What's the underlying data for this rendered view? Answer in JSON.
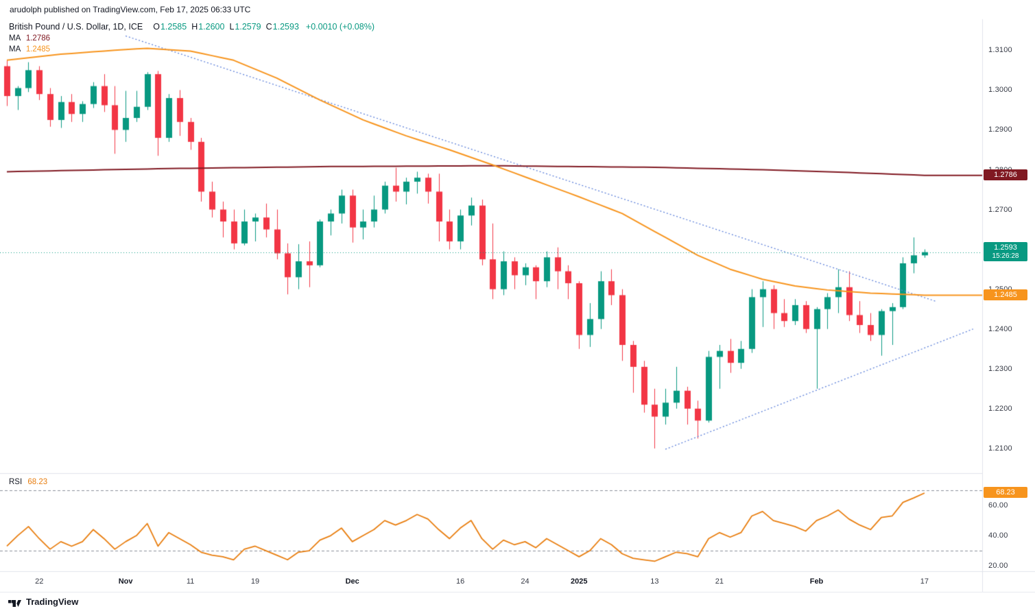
{
  "top_bar": {
    "attribution": "arudolph published on TradingView.com, Feb 17, 2025 06:33 UTC"
  },
  "header": {
    "symbol": "British Pound / U.S. Dollar, 1D, ICE",
    "ohlc": [
      {
        "label": "O",
        "value": "1.2585"
      },
      {
        "label": "H",
        "value": "1.2600"
      },
      {
        "label": "L",
        "value": "1.2579"
      },
      {
        "label": "C",
        "value": "1.2593"
      }
    ],
    "change": "+0.0010 (+0.08%)",
    "ma_rows": [
      {
        "label": "MA",
        "value": "1.2786",
        "color": "#801922"
      },
      {
        "label": "MA",
        "value": "1.2485",
        "color": "#f7941d"
      }
    ]
  },
  "rsi_legend": {
    "label": "RSI",
    "value": "68.23",
    "color": "#e87d0e"
  },
  "price_axis": {
    "labels": [
      {
        "text": "1.3100",
        "value": 1.31
      },
      {
        "text": "1.3000",
        "value": 1.3
      },
      {
        "text": "1.2900",
        "value": 1.29
      },
      {
        "text": "1.2800",
        "value": 1.28
      },
      {
        "text": "1.2700",
        "value": 1.27
      },
      {
        "text": "1.2500",
        "value": 1.25
      },
      {
        "text": "1.2400",
        "value": 1.24
      },
      {
        "text": "1.2300",
        "value": 1.23
      },
      {
        "text": "1.2200",
        "value": 1.22
      },
      {
        "text": "1.2100",
        "value": 1.21
      }
    ],
    "badges": [
      {
        "name": "ma-200-price-badge",
        "text": "1.2786",
        "value": 1.2786,
        "bg": "#801922"
      },
      {
        "name": "last-price-badge",
        "text": "1.2593",
        "value": 1.2593,
        "bg": "#089981",
        "countdown": "15:26:28"
      },
      {
        "name": "ma-50-price-badge",
        "text": "1.2485",
        "value": 1.2485,
        "bg": "#f7941d"
      }
    ]
  },
  "rsi_axis": {
    "labels": [
      {
        "text": "60.00",
        "value": 60
      },
      {
        "text": "40.00",
        "value": 40
      },
      {
        "text": "20.00",
        "value": 20
      }
    ],
    "badge": {
      "name": "rsi-value-badge",
      "text": "68.23",
      "value": 68.23,
      "bg": "#f7941d"
    }
  },
  "time_axis": {
    "ticks": [
      {
        "i": 3,
        "text": "22"
      },
      {
        "i": 11,
        "text": "Nov",
        "major": true
      },
      {
        "i": 17,
        "text": "11"
      },
      {
        "i": 23,
        "text": "19"
      },
      {
        "i": 32,
        "text": "Dec",
        "major": true
      },
      {
        "i": 42,
        "text": "16"
      },
      {
        "i": 48,
        "text": "24"
      },
      {
        "i": 53,
        "text": "2025",
        "major": true
      },
      {
        "i": 60,
        "text": "13"
      },
      {
        "i": 66,
        "text": "21"
      },
      {
        "i": 75,
        "text": "Feb",
        "major": true
      },
      {
        "i": 85,
        "text": "17"
      }
    ]
  },
  "footer": {
    "brand": "TradingView"
  },
  "chart_data": {
    "type": "candlestick",
    "title": "British Pound / U.S. Dollar, 1D, ICE",
    "colors": {
      "up": "#089981",
      "down": "#f23645",
      "ma200": "#801922",
      "ma50": "#f7941d",
      "rsi": "#e87d0e",
      "trendline": "#5b7fd9",
      "current_price": "#089981",
      "band": "#8a8e98"
    },
    "price_pane": {
      "ylim": [
        1.2038,
        1.3178
      ],
      "candles": [
        [
          1.306,
          1.3075,
          1.296,
          1.2985
        ],
        [
          1.2985,
          1.301,
          1.295,
          1.3005
        ],
        [
          1.3005,
          1.307,
          1.2995,
          1.305
        ],
        [
          1.305,
          1.306,
          1.2975,
          1.299
        ],
        [
          1.299,
          1.3005,
          1.2908,
          1.2925
        ],
        [
          1.2925,
          1.2985,
          1.2905,
          1.297
        ],
        [
          1.297,
          1.299,
          1.292,
          1.294
        ],
        [
          1.294,
          1.2972,
          1.292,
          1.2965
        ],
        [
          1.2965,
          1.302,
          1.2955,
          1.301
        ],
        [
          1.301,
          1.304,
          1.2945,
          1.2962
        ],
        [
          1.2962,
          1.301,
          1.284,
          1.29
        ],
        [
          1.29,
          1.2998,
          1.287,
          1.293
        ],
        [
          1.293,
          1.2998,
          1.292,
          1.2958
        ],
        [
          1.2958,
          1.3045,
          1.295,
          1.304
        ],
        [
          1.304,
          1.3048,
          1.2835,
          1.288
        ],
        [
          1.288,
          1.299,
          1.287,
          1.298
        ],
        [
          1.298,
          1.3,
          1.2885,
          1.292
        ],
        [
          1.292,
          1.293,
          1.285,
          1.287
        ],
        [
          1.287,
          1.288,
          1.272,
          1.2745
        ],
        [
          1.2745,
          1.277,
          1.268,
          1.27
        ],
        [
          1.27,
          1.272,
          1.263,
          1.267
        ],
        [
          1.267,
          1.27,
          1.26,
          1.2615
        ],
        [
          1.2615,
          1.27,
          1.261,
          1.267
        ],
        [
          1.267,
          1.269,
          1.262,
          1.268
        ],
        [
          1.268,
          1.2715,
          1.263,
          1.265
        ],
        [
          1.265,
          1.27,
          1.2575,
          1.259
        ],
        [
          1.259,
          1.2615,
          1.2487,
          1.253
        ],
        [
          1.253,
          1.2613,
          1.25,
          1.257
        ],
        [
          1.257,
          1.262,
          1.2505,
          1.256
        ],
        [
          1.256,
          1.2675,
          1.2555,
          1.267
        ],
        [
          1.267,
          1.27,
          1.2635,
          1.269
        ],
        [
          1.269,
          1.275,
          1.2665,
          1.2735
        ],
        [
          1.2735,
          1.275,
          1.2617,
          1.2655
        ],
        [
          1.2655,
          1.27,
          1.2625,
          1.267
        ],
        [
          1.267,
          1.2735,
          1.2655,
          1.27
        ],
        [
          1.27,
          1.277,
          1.269,
          1.276
        ],
        [
          1.276,
          1.2805,
          1.272,
          1.2745
        ],
        [
          1.2745,
          1.278,
          1.2713,
          1.277
        ],
        [
          1.277,
          1.2795,
          1.274,
          1.278
        ],
        [
          1.278,
          1.279,
          1.2715,
          1.2745
        ],
        [
          1.2745,
          1.279,
          1.262,
          1.267
        ],
        [
          1.267,
          1.27,
          1.26,
          1.262
        ],
        [
          1.262,
          1.27,
          1.26,
          1.2685
        ],
        [
          1.2685,
          1.273,
          1.266,
          1.271
        ],
        [
          1.271,
          1.2725,
          1.256,
          1.2575
        ],
        [
          1.2575,
          1.2665,
          1.2475,
          1.25
        ],
        [
          1.25,
          1.2595,
          1.2485,
          1.257
        ],
        [
          1.257,
          1.258,
          1.25,
          1.2535
        ],
        [
          1.2535,
          1.2565,
          1.251,
          1.2555
        ],
        [
          1.2555,
          1.256,
          1.2475,
          1.252
        ],
        [
          1.252,
          1.2595,
          1.2505,
          1.258
        ],
        [
          1.258,
          1.2605,
          1.25,
          1.2545
        ],
        [
          1.2545,
          1.256,
          1.2475,
          1.2515
        ],
        [
          1.2515,
          1.252,
          1.235,
          1.2385
        ],
        [
          1.2385,
          1.2465,
          1.2355,
          1.2425
        ],
        [
          1.2425,
          1.2545,
          1.24,
          1.252
        ],
        [
          1.252,
          1.255,
          1.246,
          1.2485
        ],
        [
          1.2485,
          1.25,
          1.232,
          1.236
        ],
        [
          1.236,
          1.237,
          1.224,
          1.2305
        ],
        [
          1.2305,
          1.232,
          1.219,
          1.221
        ],
        [
          1.221,
          1.225,
          1.21,
          1.218
        ],
        [
          1.218,
          1.225,
          1.216,
          1.2215
        ],
        [
          1.2215,
          1.2305,
          1.22,
          1.2245
        ],
        [
          1.2245,
          1.2255,
          1.216,
          1.22
        ],
        [
          1.22,
          1.222,
          1.2125,
          1.217
        ],
        [
          1.217,
          1.2345,
          1.2165,
          1.233
        ],
        [
          1.233,
          1.236,
          1.225,
          1.2345
        ],
        [
          1.2345,
          1.2375,
          1.229,
          1.2315
        ],
        [
          1.2315,
          1.237,
          1.23,
          1.235
        ],
        [
          1.235,
          1.25,
          1.234,
          1.248
        ],
        [
          1.248,
          1.252,
          1.2405,
          1.25
        ],
        [
          1.25,
          1.251,
          1.24,
          1.244
        ],
        [
          1.244,
          1.2475,
          1.2405,
          1.242
        ],
        [
          1.242,
          1.2475,
          1.241,
          1.246
        ],
        [
          1.246,
          1.247,
          1.239,
          1.24
        ],
        [
          1.24,
          1.2455,
          1.225,
          1.245
        ],
        [
          1.245,
          1.249,
          1.24,
          1.248
        ],
        [
          1.248,
          1.255,
          1.244,
          1.2505
        ],
        [
          1.2505,
          1.2545,
          1.242,
          1.2435
        ],
        [
          1.2435,
          1.247,
          1.239,
          1.241
        ],
        [
          1.241,
          1.244,
          1.237,
          1.2385
        ],
        [
          1.2385,
          1.245,
          1.2333,
          1.2445
        ],
        [
          1.2445,
          1.2465,
          1.236,
          1.2455
        ],
        [
          1.2455,
          1.258,
          1.245,
          1.2565
        ],
        [
          1.2565,
          1.263,
          1.254,
          1.2585
        ],
        [
          1.2585,
          1.26,
          1.2579,
          1.2593
        ]
      ],
      "ma": [
        {
          "name": "MA 200",
          "last": 1.2786,
          "points": [
            [
              0,
              1.2795
            ],
            [
              15,
              1.2803
            ],
            [
              30,
              1.2808
            ],
            [
              45,
              1.281
            ],
            [
              60,
              1.2806
            ],
            [
              70,
              1.28
            ],
            [
              78,
              1.2793
            ],
            [
              85,
              1.2786
            ]
          ]
        },
        {
          "name": "MA 50",
          "last": 1.2485,
          "points": [
            [
              0,
              1.3075
            ],
            [
              5,
              1.309
            ],
            [
              10,
              1.31
            ],
            [
              13,
              1.3105
            ],
            [
              17,
              1.3098
            ],
            [
              21,
              1.3075
            ],
            [
              25,
              1.303
            ],
            [
              29,
              1.2975
            ],
            [
              33,
              1.2925
            ],
            [
              37,
              1.2885
            ],
            [
              41,
              1.285
            ],
            [
              45,
              1.2812
            ],
            [
              49,
              1.2772
            ],
            [
              53,
              1.2732
            ],
            [
              57,
              1.269
            ],
            [
              61,
              1.263
            ],
            [
              64,
              1.2585
            ],
            [
              67,
              1.255
            ],
            [
              70,
              1.2525
            ],
            [
              73,
              1.2508
            ],
            [
              76,
              1.2498
            ],
            [
              80,
              1.249
            ],
            [
              85,
              1.2485
            ]
          ]
        }
      ],
      "trendlines": [
        {
          "name": "descending-resistance",
          "from": [
            11,
            1.3136
          ],
          "to": [
            86,
            1.247
          ]
        },
        {
          "name": "ascending-support",
          "from": [
            61,
            1.2098
          ],
          "to": [
            89.5,
            1.24
          ]
        }
      ],
      "current_price_line": 1.2593
    },
    "rsi_pane": {
      "ylim": [
        16.4,
        81.4
      ],
      "bands": [
        70,
        30
      ],
      "last": 68.23,
      "values": [
        33,
        40,
        46,
        38,
        31,
        36,
        33,
        36,
        44,
        38,
        31,
        36,
        40,
        48,
        33,
        42,
        38,
        34,
        29,
        27,
        26,
        24,
        31,
        33,
        30,
        27,
        24,
        29,
        30,
        37,
        40,
        45,
        36,
        40,
        44,
        50,
        47,
        50,
        54,
        51,
        44,
        38,
        45,
        50,
        38,
        31,
        37,
        34,
        36,
        32,
        38,
        34,
        30,
        26,
        30,
        38,
        34,
        28,
        25,
        24,
        23,
        26,
        29,
        28,
        26,
        38,
        42,
        39,
        42,
        53,
        56,
        50,
        48,
        46,
        43,
        50,
        53,
        57,
        51,
        47,
        44,
        52,
        53,
        62,
        65,
        68.23
      ]
    }
  }
}
